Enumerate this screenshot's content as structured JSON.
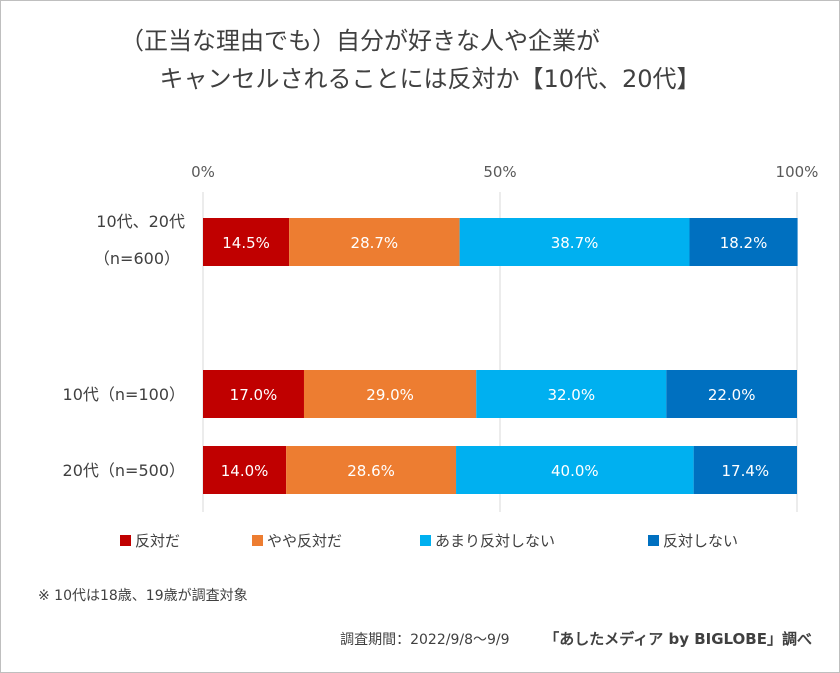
{
  "title": {
    "line1": "（正当な理由でも）自分が好きな人や企業が",
    "line2": "キャンセルされることには反対か【10代、20代】"
  },
  "chart_data": {
    "type": "bar",
    "orientation": "horizontal",
    "stacked": true,
    "x_ticks": [
      "0%",
      "50%",
      "100%"
    ],
    "xlim": [
      0,
      100
    ],
    "categories": [
      {
        "line1": "10代、20代",
        "line2": "（n=600）"
      },
      {
        "line1": "10代（n=100）",
        "line2": ""
      },
      {
        "line1": "20代（n=500）",
        "line2": ""
      }
    ],
    "series": [
      {
        "name": "反対だ",
        "color": "#c00000",
        "values": [
          14.5,
          17.0,
          14.0
        ],
        "labels": [
          "14.5%",
          "17.0%",
          "14.0%"
        ]
      },
      {
        "name": "やや反対だ",
        "color": "#ed7d31",
        "values": [
          28.7,
          29.0,
          28.6
        ],
        "labels": [
          "28.7%",
          "29.0%",
          "28.6%"
        ]
      },
      {
        "name": "あまり反対しない",
        "color": "#00b0f0",
        "values": [
          38.7,
          32.0,
          40.0
        ],
        "labels": [
          "38.7%",
          "32.0%",
          "40.0%"
        ]
      },
      {
        "name": "反対しない",
        "color": "#0070c0",
        "values": [
          18.2,
          22.0,
          17.4
        ],
        "labels": [
          "18.2%",
          "22.0%",
          "17.4%"
        ]
      }
    ],
    "legend_position": "bottom",
    "gridlines": true
  },
  "footnote": "※ 10代は18歳、19歳が調査対象",
  "source": {
    "period": "調査期間：2022/9/8～9/9",
    "org": "「あしたメディア by BIGLOBE」調べ"
  }
}
